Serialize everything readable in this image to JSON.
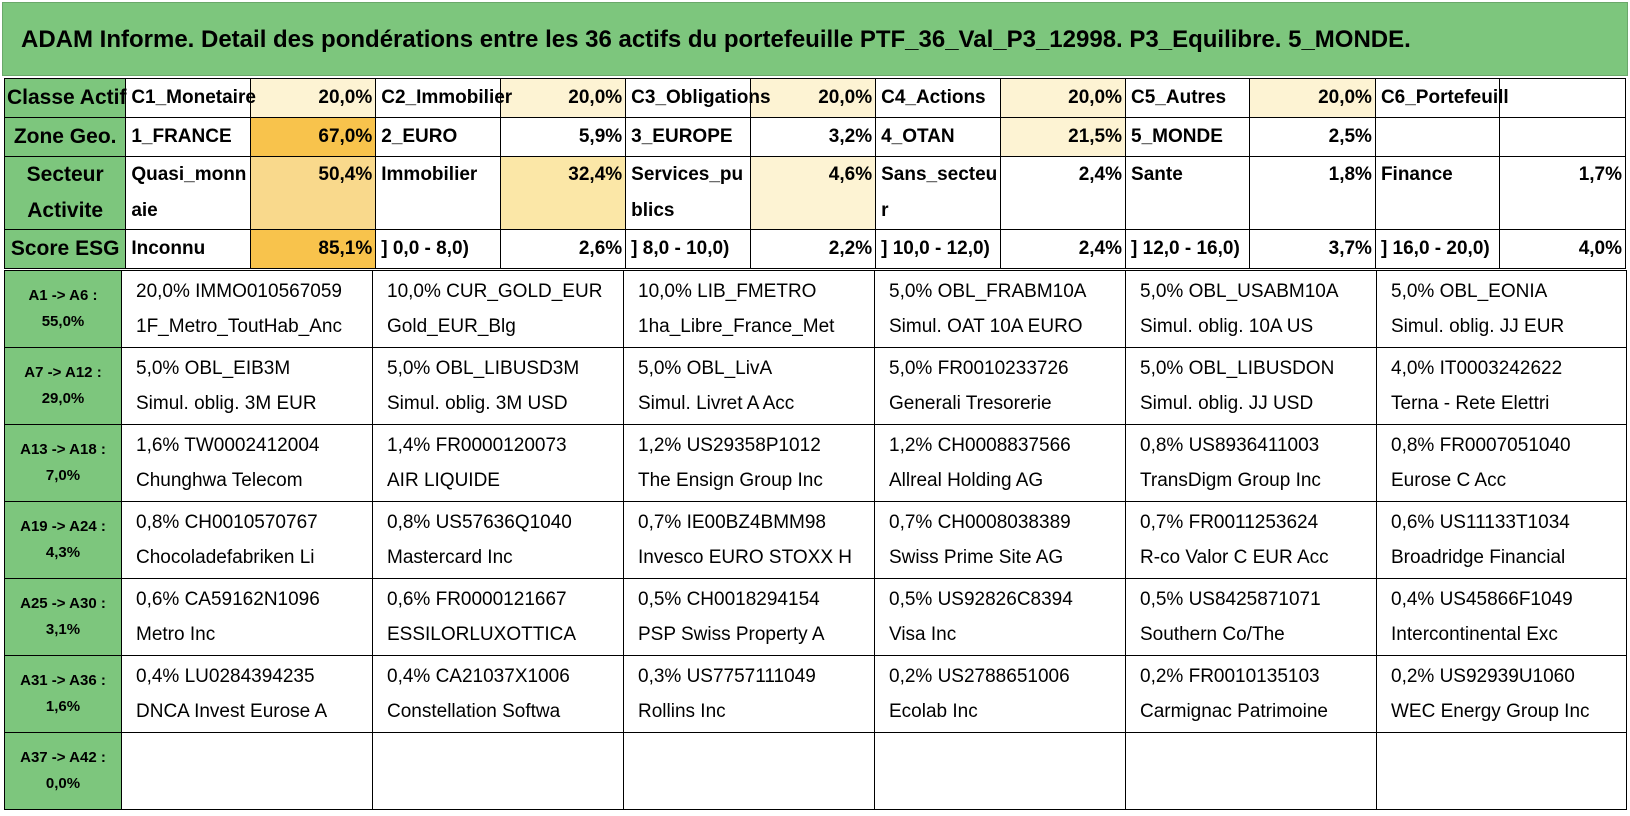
{
  "title": "ADAM Informe. Detail des pondérations entre les 36 actifs du portefeuille PTF_36_Val_P3_12998. P3_Equilibre. 5_MONDE.",
  "summary": {
    "classe": {
      "label": "Classe Actif",
      "cells": [
        {
          "name": "C1_Monetaire",
          "pct": "20,0%"
        },
        {
          "name": "C2_Immobilier",
          "pct": "20,0%"
        },
        {
          "name": "C3_Obligations",
          "pct": "20,0%"
        },
        {
          "name": "C4_Actions",
          "pct": "20,0%"
        },
        {
          "name": "C5_Autres",
          "pct": "20,0%"
        },
        {
          "name": "C6_Portefeuill",
          "pct": ""
        }
      ]
    },
    "zone": {
      "label": "Zone Geo.",
      "cells": [
        {
          "name": "1_FRANCE",
          "pct": "67,0%"
        },
        {
          "name": "2_EURO",
          "pct": "5,9%"
        },
        {
          "name": "3_EUROPE",
          "pct": "3,2%"
        },
        {
          "name": "4_OTAN",
          "pct": "21,5%"
        },
        {
          "name": "5_MONDE",
          "pct": "2,5%"
        },
        {
          "name": "",
          "pct": ""
        }
      ]
    },
    "secteur": {
      "label1": "Secteur",
      "label2": "Activite",
      "cells": [
        {
          "name": "Quasi_monnaie",
          "pct": "50,4%"
        },
        {
          "name": "Immobilier",
          "pct": "32,4%"
        },
        {
          "name": "Services_publics",
          "pct": "4,6%"
        },
        {
          "name": "Sans_secteur",
          "pct": "2,4%"
        },
        {
          "name": "Sante",
          "pct": "1,8%"
        },
        {
          "name": "Finance",
          "pct": "1,7%"
        }
      ]
    },
    "esg": {
      "label": "Score ESG",
      "cells": [
        {
          "name": "Inconnu",
          "pct": "85,1%"
        },
        {
          "name": "] 0,0 - 8,0)",
          "pct": "2,6%"
        },
        {
          "name": "] 8,0 - 10,0)",
          "pct": "2,2%"
        },
        {
          "name": "] 10,0 - 12,0)",
          "pct": "2,4%"
        },
        {
          "name": "] 12,0 - 16,0)",
          "pct": "3,7%"
        },
        {
          "name": "] 16,0 - 20,0)",
          "pct": "4,0%"
        }
      ]
    }
  },
  "assets": [
    {
      "range": "A1 -> A6 :",
      "total": "55,0%",
      "items": [
        {
          "line1": "20,0% IMMO010567059",
          "line2": "1F_Metro_ToutHab_Anc"
        },
        {
          "line1": "10,0% CUR_GOLD_EUR",
          "line2": "Gold_EUR_Blg"
        },
        {
          "line1": "10,0% LIB_FMETRO",
          "line2": "1ha_Libre_France_Met"
        },
        {
          "line1": "5,0% OBL_FRABM10A",
          "line2": "Simul. OAT 10A EURO"
        },
        {
          "line1": "5,0% OBL_USABM10A",
          "line2": "Simul. oblig. 10A US"
        },
        {
          "line1": "5,0% OBL_EONIA",
          "line2": "Simul. oblig. JJ EUR"
        }
      ]
    },
    {
      "range": "A7 -> A12 :",
      "total": "29,0%",
      "items": [
        {
          "line1": "5,0% OBL_EIB3M",
          "line2": "Simul. oblig. 3M EUR"
        },
        {
          "line1": "5,0% OBL_LIBUSD3M",
          "line2": "Simul. oblig. 3M USD"
        },
        {
          "line1": "5,0% OBL_LivA",
          "line2": "Simul. Livret A Acc"
        },
        {
          "line1": "5,0% FR0010233726",
          "line2": "Generali Tresorerie"
        },
        {
          "line1": "5,0% OBL_LIBUSDON",
          "line2": "Simul. oblig. JJ USD"
        },
        {
          "line1": "4,0% IT0003242622",
          "line2": "Terna - Rete Elettri"
        }
      ]
    },
    {
      "range": "A13 -> A18 :",
      "total": "7,0%",
      "items": [
        {
          "line1": "1,6% TW0002412004",
          "line2": "Chunghwa Telecom"
        },
        {
          "line1": "1,4% FR0000120073",
          "line2": "AIR LIQUIDE"
        },
        {
          "line1": "1,2% US29358P1012",
          "line2": "The Ensign Group Inc"
        },
        {
          "line1": "1,2% CH0008837566",
          "line2": "Allreal Holding AG"
        },
        {
          "line1": "0,8% US8936411003",
          "line2": "TransDigm Group Inc"
        },
        {
          "line1": "0,8% FR0007051040",
          "line2": "Eurose C Acc"
        }
      ]
    },
    {
      "range": "A19 -> A24 :",
      "total": "4,3%",
      "items": [
        {
          "line1": "0,8% CH0010570767",
          "line2": "Chocoladefabriken Li"
        },
        {
          "line1": "0,8% US57636Q1040",
          "line2": "Mastercard Inc"
        },
        {
          "line1": "0,7% IE00BZ4BMM98",
          "line2": "Invesco EURO STOXX H"
        },
        {
          "line1": "0,7% CH0008038389",
          "line2": "Swiss Prime Site AG"
        },
        {
          "line1": "0,7% FR0011253624",
          "line2": "R-co Valor C EUR Acc"
        },
        {
          "line1": "0,6% US11133T1034",
          "line2": "Broadridge Financial"
        }
      ]
    },
    {
      "range": "A25 -> A30 :",
      "total": "3,1%",
      "items": [
        {
          "line1": "0,6% CA59162N1096",
          "line2": "Metro Inc"
        },
        {
          "line1": "0,6% FR0000121667",
          "line2": "ESSILORLUXOTTICA"
        },
        {
          "line1": "0,5% CH0018294154",
          "line2": "PSP Swiss Property A"
        },
        {
          "line1": "0,5% US92826C8394",
          "line2": "Visa Inc"
        },
        {
          "line1": "0,5% US8425871071",
          "line2": "Southern Co/The"
        },
        {
          "line1": "0,4% US45866F1049",
          "line2": "Intercontinental Exc"
        }
      ]
    },
    {
      "range": "A31 -> A36 :",
      "total": "1,6%",
      "items": [
        {
          "line1": "0,4% LU0284394235",
          "line2": "DNCA Invest Eurose A"
        },
        {
          "line1": "0,4% CA21037X1006",
          "line2": "Constellation Softwa"
        },
        {
          "line1": "0,3% US7757111049",
          "line2": "Rollins Inc"
        },
        {
          "line1": "0,2% US2788651006",
          "line2": "Ecolab Inc"
        },
        {
          "line1": "0,2% FR0010135103",
          "line2": "Carmignac Patrimoine"
        },
        {
          "line1": "0,2% US92939U1060",
          "line2": "WEC Energy Group Inc"
        }
      ]
    },
    {
      "range": "A37 -> A42 :",
      "total": "0,0%",
      "items": [
        {
          "line1": "",
          "line2": ""
        },
        {
          "line1": "",
          "line2": ""
        },
        {
          "line1": "",
          "line2": ""
        },
        {
          "line1": "",
          "line2": ""
        },
        {
          "line1": "",
          "line2": ""
        },
        {
          "line1": "",
          "line2": ""
        }
      ]
    }
  ]
}
